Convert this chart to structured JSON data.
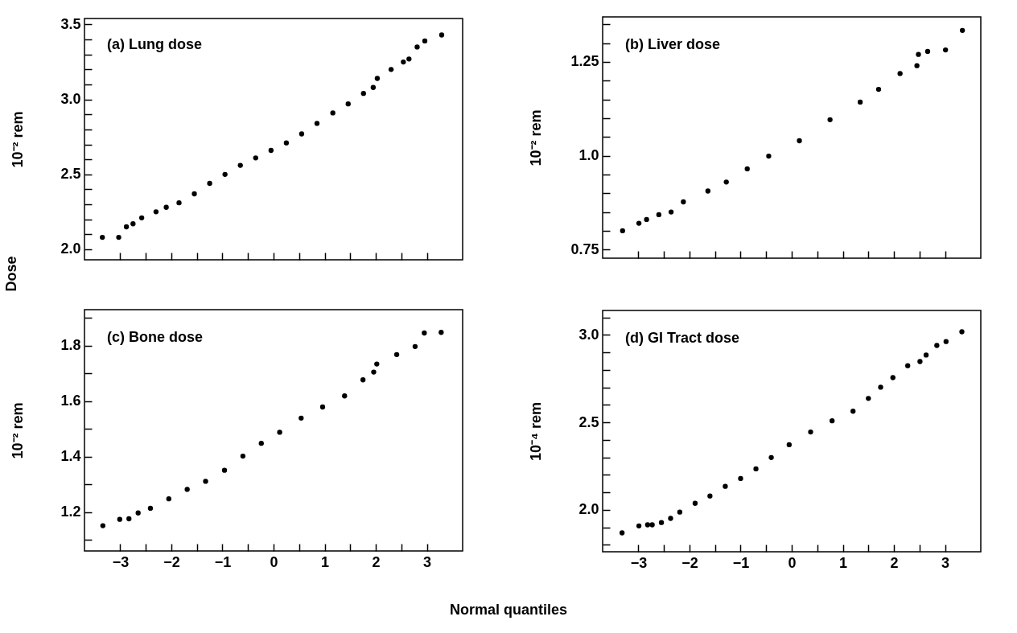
{
  "chart_data": [
    {
      "type": "scatter",
      "title": "(a) Lung dose",
      "ylabel": "10⁻² rem",
      "annotations": [
        "Dose"
      ],
      "marker": "circle",
      "color": "#000000",
      "tick_labels": "y",
      "x": [
        -3.35,
        -3.03,
        -2.88,
        -2.75,
        -2.58,
        -2.3,
        -2.1,
        -1.85,
        -1.55,
        -1.25,
        -0.95,
        -0.65,
        -0.35,
        -0.05,
        0.25,
        0.55,
        0.85,
        1.16,
        1.46,
        1.76,
        1.95,
        2.03,
        2.3,
        2.54,
        2.65,
        2.81,
        2.96,
        3.29
      ],
      "values": [
        2.08,
        2.08,
        2.15,
        2.17,
        2.21,
        2.25,
        2.28,
        2.31,
        2.37,
        2.44,
        2.5,
        2.56,
        2.61,
        2.66,
        2.71,
        2.77,
        2.84,
        2.91,
        2.97,
        3.04,
        3.08,
        3.14,
        3.2,
        3.25,
        3.27,
        3.35,
        3.39,
        3.43
      ],
      "xlim": [
        -3.7,
        3.7
      ],
      "ylim": [
        1.93,
        3.54
      ],
      "xticks": [
        -3,
        {
          "value": -2.5,
          "label": null
        },
        -2,
        {
          "value": -1.5,
          "label": null
        },
        -1,
        {
          "value": -0.5,
          "label": null
        },
        0,
        {
          "value": 0.5,
          "label": null
        },
        1,
        {
          "value": 1.5,
          "label": null
        },
        2,
        {
          "value": 2.5,
          "label": null
        },
        3
      ],
      "yticks": [
        {
          "value": 2,
          "label": "2.0"
        },
        {
          "value": 2.1,
          "label": null
        },
        {
          "value": 2.2,
          "label": null
        },
        {
          "value": 2.3,
          "label": null
        },
        {
          "value": 2.4,
          "label": null
        },
        2.5,
        {
          "value": 2.6,
          "label": null
        },
        {
          "value": 2.7,
          "label": null
        },
        {
          "value": 2.8,
          "label": null
        },
        {
          "value": 2.9,
          "label": null
        },
        {
          "value": 3,
          "label": "3.0"
        },
        {
          "value": 3.1,
          "label": null
        },
        {
          "value": 3.2,
          "label": null
        },
        {
          "value": 3.3,
          "label": null
        },
        {
          "value": 3.4,
          "label": null
        },
        3.5
      ]
    },
    {
      "type": "scatter",
      "title": "(b) Liver dose",
      "ylabel": "10⁻² rem",
      "marker": "circle",
      "color": "#000000",
      "tick_labels": "y",
      "x": [
        -3.31,
        -2.99,
        -2.84,
        -2.6,
        -2.36,
        -2.12,
        -1.64,
        -1.28,
        -0.87,
        -0.45,
        0.15,
        0.75,
        1.34,
        1.7,
        2.12,
        2.45,
        2.48,
        2.66,
        3.01,
        3.34
      ],
      "values": [
        0.8,
        0.82,
        0.83,
        0.843,
        0.85,
        0.877,
        0.906,
        0.93,
        0.965,
        0.999,
        1.04,
        1.096,
        1.143,
        1.177,
        1.219,
        1.24,
        1.27,
        1.278,
        1.282,
        1.334
      ],
      "xlim": [
        -3.7,
        3.7
      ],
      "ylim": [
        0.727,
        1.37
      ],
      "xticks": [
        -3,
        {
          "value": -2.5,
          "label": null
        },
        -2,
        {
          "value": -1.5,
          "label": null
        },
        -1,
        {
          "value": -0.5,
          "label": null
        },
        0,
        {
          "value": 0.5,
          "label": null
        },
        1,
        {
          "value": 1.5,
          "label": null
        },
        2,
        {
          "value": 2.5,
          "label": null
        },
        3
      ],
      "yticks": [
        0.75,
        {
          "value": 0.8,
          "label": null
        },
        {
          "value": 0.85,
          "label": null
        },
        {
          "value": 0.9,
          "label": null
        },
        {
          "value": 0.95,
          "label": null
        },
        {
          "value": 1,
          "label": "1.0"
        },
        {
          "value": 1.05,
          "label": null
        },
        {
          "value": 1.1,
          "label": null
        },
        {
          "value": 1.15,
          "label": null
        },
        {
          "value": 1.2,
          "label": null
        },
        1.25,
        {
          "value": 1.3,
          "label": null
        },
        {
          "value": 1.35,
          "label": null
        }
      ]
    },
    {
      "type": "scatter",
      "title": "(c) Bone dose",
      "ylabel": "10⁻² rem",
      "xlabel": "Normal quantiles",
      "marker": "circle",
      "color": "#000000",
      "x": [
        -3.34,
        -3.01,
        -2.83,
        -2.65,
        -2.41,
        -2.05,
        -1.69,
        -1.33,
        -0.96,
        -0.6,
        -0.24,
        0.12,
        0.54,
        0.96,
        1.39,
        1.75,
        1.96,
        2.02,
        2.41,
        2.77,
        2.95,
        3.28
      ],
      "values": [
        1.151,
        1.174,
        1.176,
        1.197,
        1.214,
        1.248,
        1.282,
        1.311,
        1.351,
        1.402,
        1.448,
        1.488,
        1.539,
        1.579,
        1.619,
        1.677,
        1.705,
        1.734,
        1.768,
        1.797,
        1.846,
        1.848
      ],
      "xlim": [
        -3.7,
        3.7
      ],
      "ylim": [
        1.06,
        1.93
      ],
      "xticks": [
        -3,
        {
          "value": -2.5,
          "label": null
        },
        -2,
        {
          "value": -1.5,
          "label": null
        },
        -1,
        {
          "value": -0.5,
          "label": null
        },
        0,
        {
          "value": 0.5,
          "label": null
        },
        1,
        {
          "value": 1.5,
          "label": null
        },
        2,
        {
          "value": 2.5,
          "label": null
        },
        3
      ],
      "yticks": [
        {
          "value": 1.1,
          "label": null
        },
        1.2,
        {
          "value": 1.3,
          "label": null
        },
        1.4,
        {
          "value": 1.5,
          "label": null
        },
        1.6,
        {
          "value": 1.7,
          "label": null
        },
        1.8,
        {
          "value": 1.9,
          "label": null
        }
      ]
    },
    {
      "type": "scatter",
      "title": "(d) GI Tract dose",
      "ylabel": "10⁻⁴ rem",
      "marker": "circle",
      "color": "#000000",
      "x": [
        -3.32,
        -2.99,
        -2.82,
        -2.73,
        -2.55,
        -2.37,
        -2.19,
        -1.89,
        -1.6,
        -1.3,
        -1.0,
        -0.7,
        -0.4,
        -0.05,
        0.37,
        0.79,
        1.2,
        1.5,
        1.74,
        1.98,
        2.27,
        2.51,
        2.63,
        2.84,
        3.02,
        3.33
      ],
      "values": [
        1.868,
        1.908,
        1.914,
        1.914,
        1.927,
        1.951,
        1.987,
        2.037,
        2.079,
        2.134,
        2.179,
        2.234,
        2.299,
        2.372,
        2.445,
        2.509,
        2.564,
        2.637,
        2.701,
        2.756,
        2.824,
        2.848,
        2.885,
        2.94,
        2.962,
        3.018
      ],
      "xlim": [
        -3.7,
        3.7
      ],
      "ylim": [
        1.76,
        3.14
      ],
      "xticks": [
        -3,
        {
          "value": -2.5,
          "label": null
        },
        -2,
        {
          "value": -1.5,
          "label": null
        },
        -1,
        {
          "value": -0.5,
          "label": null
        },
        0,
        {
          "value": 0.5,
          "label": null
        },
        1,
        {
          "value": 1.5,
          "label": null
        },
        2,
        {
          "value": 2.5,
          "label": null
        },
        3
      ],
      "yticks": [
        {
          "value": 1.8,
          "label": null
        },
        {
          "value": 1.9,
          "label": null
        },
        {
          "value": 2,
          "label": "2.0"
        },
        {
          "value": 2.1,
          "label": null
        },
        {
          "value": 2.2,
          "label": null
        },
        {
          "value": 2.3,
          "label": null
        },
        {
          "value": 2.4,
          "label": null
        },
        2.5,
        {
          "value": 2.6,
          "label": null
        },
        {
          "value": 2.7,
          "label": null
        },
        {
          "value": 2.8,
          "label": null
        },
        {
          "value": 2.9,
          "label": null
        },
        {
          "value": 3,
          "label": "3.0"
        },
        {
          "value": 3.1,
          "label": null
        }
      ]
    }
  ]
}
